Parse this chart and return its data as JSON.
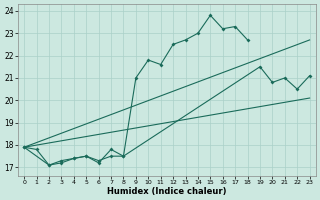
{
  "xlabel": "Humidex (Indice chaleur)",
  "bg_color": "#cce8e0",
  "grid_color": "#aad0c8",
  "line_color": "#1a6b5a",
  "xlim": [
    -0.5,
    23.5
  ],
  "ylim": [
    16.6,
    24.3
  ],
  "xticks": [
    0,
    1,
    2,
    3,
    4,
    5,
    6,
    7,
    8,
    9,
    10,
    11,
    12,
    13,
    14,
    15,
    16,
    17,
    18,
    19,
    20,
    21,
    22,
    23
  ],
  "yticks": [
    17,
    18,
    19,
    20,
    21,
    22,
    23,
    24
  ],
  "series1": [
    [
      0,
      17.9
    ],
    [
      1,
      17.8
    ],
    [
      2,
      17.1
    ],
    [
      3,
      17.2
    ],
    [
      4,
      17.4
    ],
    [
      5,
      17.5
    ],
    [
      6,
      17.2
    ],
    [
      7,
      17.8
    ],
    [
      8,
      17.5
    ],
    [
      9,
      21.0
    ],
    [
      10,
      21.8
    ],
    [
      11,
      21.6
    ],
    [
      12,
      22.5
    ],
    [
      13,
      22.7
    ],
    [
      14,
      23.0
    ],
    [
      15,
      23.8
    ],
    [
      16,
      23.2
    ],
    [
      17,
      23.3
    ],
    [
      18,
      22.7
    ]
  ],
  "series2": [
    [
      0,
      17.9
    ],
    [
      2,
      17.1
    ],
    [
      3,
      17.3
    ],
    [
      4,
      17.4
    ],
    [
      5,
      17.5
    ],
    [
      6,
      17.3
    ],
    [
      7,
      17.5
    ],
    [
      8,
      17.5
    ],
    [
      19,
      21.5
    ],
    [
      20,
      20.8
    ],
    [
      21,
      21.0
    ],
    [
      22,
      20.5
    ],
    [
      23,
      21.1
    ]
  ],
  "series3_line": [
    [
      0,
      17.9
    ],
    [
      23,
      20.1
    ]
  ],
  "series4_line": [
    [
      0,
      17.9
    ],
    [
      23,
      22.7
    ]
  ]
}
